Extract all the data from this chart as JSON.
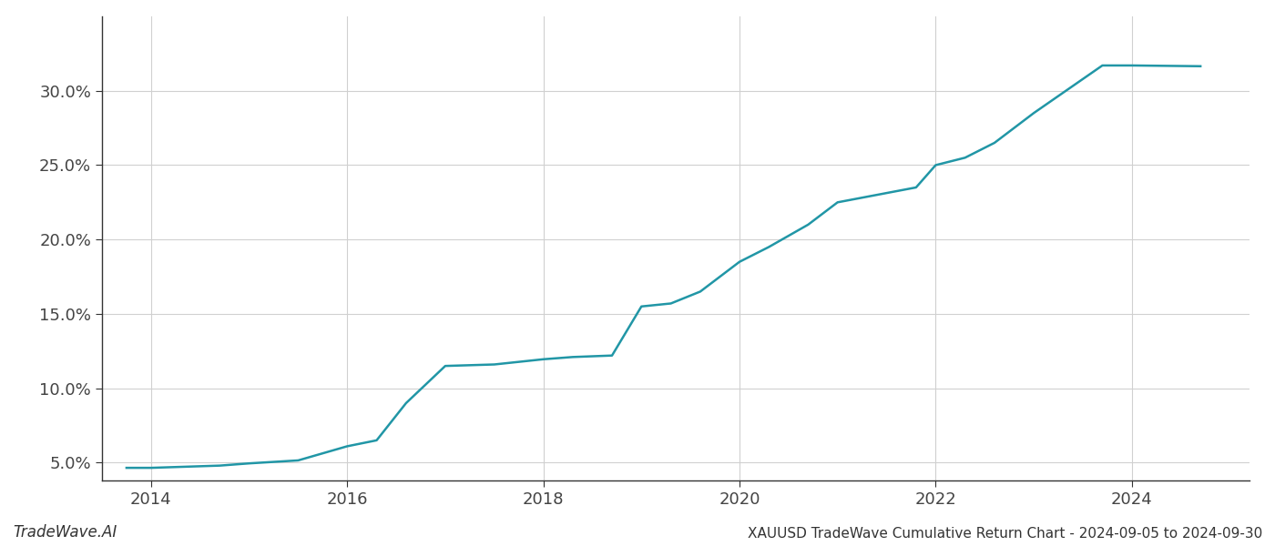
{
  "x_years": [
    2013.75,
    2014.0,
    2014.7,
    2015.0,
    2015.5,
    2016.0,
    2016.3,
    2016.6,
    2017.0,
    2017.5,
    2018.0,
    2018.3,
    2018.7,
    2019.0,
    2019.3,
    2019.6,
    2020.0,
    2020.3,
    2020.7,
    2021.0,
    2021.4,
    2021.8,
    2022.0,
    2022.3,
    2022.6,
    2023.0,
    2023.7,
    2024.0,
    2024.7
  ],
  "y_values": [
    4.65,
    4.65,
    4.8,
    4.95,
    5.15,
    6.1,
    6.5,
    9.0,
    11.5,
    11.6,
    11.95,
    12.1,
    12.2,
    15.5,
    15.7,
    16.5,
    18.5,
    19.5,
    21.0,
    22.5,
    23.0,
    23.5,
    25.0,
    25.5,
    26.5,
    28.5,
    31.7,
    31.7,
    31.65
  ],
  "line_color": "#2196a6",
  "line_width": 1.8,
  "background_color": "#ffffff",
  "grid_color": "#d0d0d0",
  "title": "XAUUSD TradeWave Cumulative Return Chart - 2024-09-05 to 2024-09-30",
  "watermark": "TradeWave.AI",
  "yticks": [
    5.0,
    10.0,
    15.0,
    20.0,
    25.0,
    30.0
  ],
  "xticks": [
    2014,
    2016,
    2018,
    2020,
    2022,
    2024
  ],
  "xlim": [
    2013.5,
    2025.2
  ],
  "ylim": [
    3.8,
    35.0
  ],
  "tick_fontsize": 13,
  "title_fontsize": 11,
  "watermark_fontsize": 12
}
